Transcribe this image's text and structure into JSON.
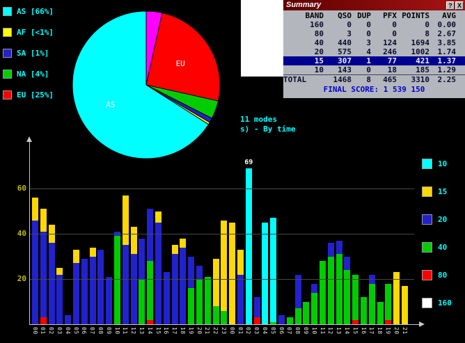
{
  "continent_legend": {
    "items": [
      {
        "label": "AS [66%]",
        "color": "#00ffff"
      },
      {
        "label": "AF [<1%]",
        "color": "#ffff00"
      },
      {
        "label": "SA [1%]",
        "color": "#2222cc"
      },
      {
        "label": "NA [4%]",
        "color": "#00cc00"
      },
      {
        "label": "EU [25%]",
        "color": "#ff0000"
      }
    ]
  },
  "notes": {
    "line1": "11 modes",
    "line2": "s) - By time"
  },
  "summary": {
    "title": "Summary",
    "help_label": "?",
    "close_label": "X",
    "columns": [
      "BAND",
      "QSO",
      "DUP",
      "PFX",
      "POINTS",
      "AVG"
    ],
    "rows": [
      [
        "160",
        "0",
        "0",
        "0",
        "0",
        "0.00"
      ],
      [
        "80",
        "3",
        "0",
        "0",
        "8",
        "2.67"
      ],
      [
        "40",
        "440",
        "3",
        "124",
        "1694",
        "3.85"
      ],
      [
        "20",
        "575",
        "4",
        "246",
        "1002",
        "1.74"
      ],
      [
        "15",
        "307",
        "1",
        "77",
        "421",
        "1.37"
      ],
      [
        "10",
        "143",
        "0",
        "18",
        "185",
        "1.29"
      ],
      [
        "TOTAL",
        "1468",
        "8",
        "465",
        "3310",
        "2.25"
      ]
    ],
    "highlighted_band": "15",
    "final_score": "FINAL SCORE: 1 539 150"
  },
  "chart_data": [
    {
      "type": "pie",
      "slices": [
        {
          "label": "",
          "value": 3.5,
          "color": "#ff00ff"
        },
        {
          "label": "EU",
          "value": 25,
          "color": "#ff0000",
          "show_label": true
        },
        {
          "label": "NA",
          "value": 4,
          "color": "#00cc00"
        },
        {
          "label": "SA",
          "value": 1,
          "color": "#2222cc"
        },
        {
          "label": "AF",
          "value": 0.5,
          "color": "#ffff00"
        },
        {
          "label": "AS",
          "value": 66,
          "color": "#00ffff",
          "show_label": true
        }
      ]
    },
    {
      "type": "bar",
      "stacked": true,
      "x_labels": [
        "00",
        "01",
        "02",
        "03",
        "04",
        "05",
        "06",
        "07",
        "08",
        "09",
        "10",
        "11",
        "12",
        "13",
        "14",
        "15",
        "16",
        "17",
        "18",
        "19",
        "20",
        "21",
        "22",
        "23",
        "00",
        "01",
        "02",
        "03",
        "04",
        "05",
        "06",
        "07",
        "08",
        "09",
        "10",
        "11",
        "12",
        "13",
        "14",
        "15",
        "16",
        "17",
        "18",
        "19",
        "20",
        "21"
      ],
      "series": [
        {
          "name": "160",
          "color": "#ffffff",
          "values": [
            0,
            0,
            0,
            0,
            0,
            0,
            0,
            0,
            0,
            0,
            0,
            0,
            0,
            0,
            0,
            0,
            0,
            0,
            0,
            0,
            0,
            0,
            0,
            0,
            0,
            0,
            0,
            0,
            0,
            0,
            0,
            0,
            0,
            0,
            0,
            0,
            0,
            0,
            0,
            0,
            0,
            0,
            0,
            0,
            0,
            0
          ]
        },
        {
          "name": "80",
          "color": "#ff0000",
          "values": [
            0,
            3,
            0,
            0,
            0,
            0,
            0,
            0,
            0,
            0,
            0,
            0,
            0,
            0,
            2,
            0,
            0,
            0,
            0,
            0,
            0,
            0,
            0,
            0,
            0,
            0,
            0,
            3,
            0,
            0,
            0,
            0,
            0,
            0,
            0,
            0,
            0,
            0,
            0,
            2,
            0,
            0,
            0,
            2,
            0,
            0
          ]
        },
        {
          "name": "40",
          "color": "#00cc00",
          "values": [
            0,
            0,
            0,
            0,
            0,
            0,
            0,
            0,
            0,
            0,
            39,
            0,
            0,
            20,
            26,
            0,
            0,
            0,
            0,
            16,
            20,
            21,
            8,
            6,
            0,
            0,
            0,
            0,
            0,
            1,
            0,
            3,
            7,
            10,
            14,
            28,
            30,
            31,
            24,
            20,
            12,
            18,
            10,
            16,
            0,
            0
          ]
        },
        {
          "name": "20",
          "color": "#2222cc",
          "values": [
            46,
            38,
            36,
            22,
            4,
            27,
            29,
            30,
            33,
            21,
            2,
            35,
            31,
            18,
            23,
            45,
            23,
            31,
            34,
            14,
            6,
            0,
            0,
            0,
            0,
            22,
            0,
            9,
            0,
            0,
            4,
            0,
            15,
            0,
            4,
            0,
            6,
            6,
            6,
            0,
            0,
            4,
            0,
            0,
            0,
            0
          ]
        },
        {
          "name": "15",
          "color": "#ffd800",
          "values": [
            10,
            10,
            8,
            3,
            0,
            6,
            0,
            4,
            0,
            0,
            0,
            22,
            12,
            0,
            0,
            5,
            0,
            4,
            4,
            0,
            0,
            0,
            21,
            40,
            45,
            11,
            0,
            0,
            0,
            0,
            0,
            0,
            0,
            0,
            0,
            0,
            0,
            0,
            0,
            0,
            0,
            0,
            0,
            0,
            23,
            17
          ]
        },
        {
          "name": "10",
          "color": "#00ffff",
          "values": [
            0,
            0,
            0,
            0,
            0,
            0,
            0,
            0,
            0,
            0,
            0,
            0,
            0,
            0,
            0,
            0,
            0,
            0,
            0,
            0,
            0,
            0,
            0,
            0,
            0,
            0,
            69,
            0,
            45,
            46,
            0,
            0,
            0,
            0,
            0,
            0,
            0,
            0,
            0,
            0,
            0,
            0,
            0,
            0,
            0,
            0
          ]
        }
      ],
      "yticks": [
        20,
        40,
        60
      ],
      "ylim": [
        0,
        80
      ],
      "annotation": {
        "text": "69",
        "bar_index": 26
      }
    }
  ]
}
